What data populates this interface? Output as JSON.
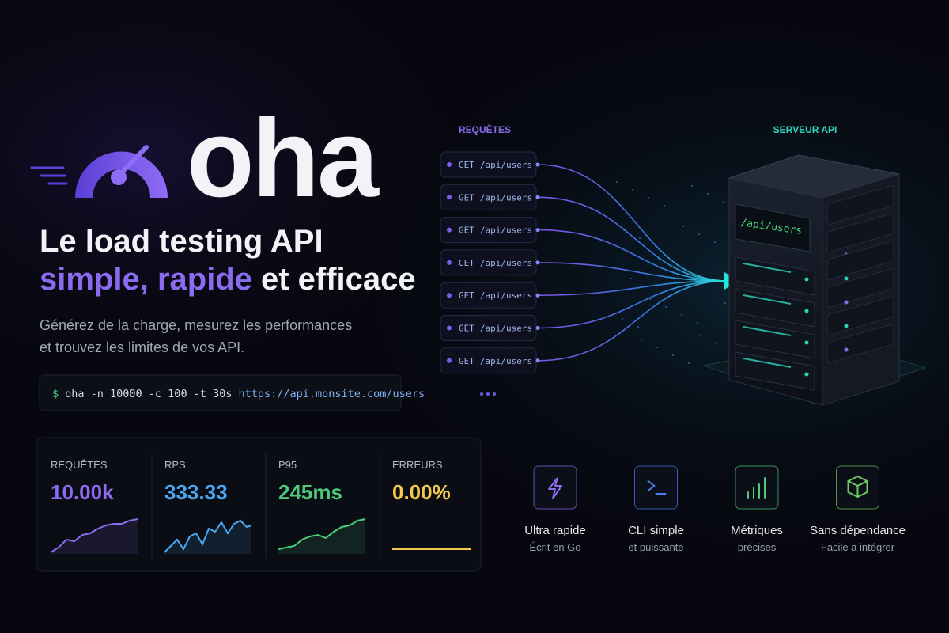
{
  "logo": {
    "text": "oha"
  },
  "headline": {
    "line1": "Le load testing API",
    "highlight": "simple, rapide",
    "rest": "et efficace"
  },
  "description": {
    "line1": "Générez de la charge, mesurez les performances",
    "line2": "et trouvez les limites de vos API."
  },
  "command": {
    "prompt": "$",
    "text": "oha -n 10000 -c 100 -t 30s",
    "url": "https://api.monsite.com/users"
  },
  "stats": [
    {
      "label": "REQUÊTES",
      "value": "10.00k"
    },
    {
      "label": "RPS",
      "value": "333.33"
    },
    {
      "label": "P95",
      "value": "245ms"
    },
    {
      "label": "ERREURS",
      "value": "0.00%"
    }
  ],
  "diagram": {
    "requests_label": "REQUÊTES",
    "server_label": "SERVEUR API",
    "server_endpoint": "/api/users",
    "requests": [
      {
        "method": "GET",
        "path": "/api/users"
      },
      {
        "method": "GET",
        "path": "/api/users"
      },
      {
        "method": "GET",
        "path": "/api/users"
      },
      {
        "method": "GET",
        "path": "/api/users"
      },
      {
        "method": "GET",
        "path": "/api/users"
      },
      {
        "method": "GET",
        "path": "/api/users"
      },
      {
        "method": "GET",
        "path": "/api/users"
      }
    ]
  },
  "features": [
    {
      "title": "Ultra rapide",
      "subtitle": "Écrit en Go"
    },
    {
      "title": "CLI simple",
      "subtitle": "et puissante"
    },
    {
      "title": "Métriques",
      "subtitle": "précises"
    },
    {
      "title": "Sans dépendance",
      "subtitle": "Facile à intégrer"
    }
  ]
}
